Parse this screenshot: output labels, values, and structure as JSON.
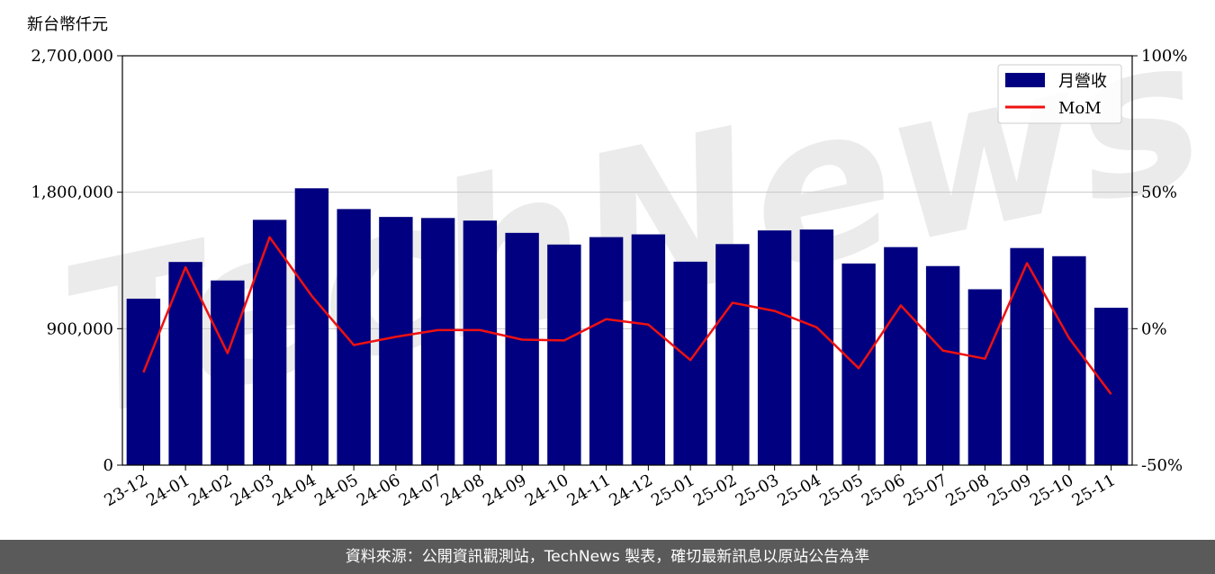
{
  "chart_data": {
    "type": "bar",
    "y_unit_label": "新台幣仟元",
    "categories": [
      "23-12",
      "24-01",
      "24-02",
      "24-03",
      "24-04",
      "24-05",
      "24-06",
      "24-07",
      "24-08",
      "24-09",
      "24-10",
      "24-11",
      "24-12",
      "25-01",
      "25-02",
      "25-03",
      "25-04",
      "25-05",
      "25-06",
      "25-07",
      "25-08",
      "25-09",
      "25-10",
      "25-11"
    ],
    "series": [
      {
        "name": "月營收",
        "axis": "left",
        "kind": "bar",
        "color": "#000080",
        "values": [
          1098000,
          1340000,
          1218000,
          1618000,
          1826000,
          1689000,
          1637000,
          1630000,
          1613000,
          1532000,
          1455000,
          1504000,
          1522000,
          1342000,
          1458000,
          1548000,
          1554000,
          1330000,
          1438000,
          1313000,
          1160000,
          1432000,
          1378000,
          1038000
        ]
      },
      {
        "name": "MoM",
        "axis": "right",
        "kind": "line",
        "color": "#ee1111",
        "values": [
          -16.0,
          22.5,
          -9.0,
          33.5,
          12.0,
          -6.0,
          -3.0,
          -0.5,
          -0.5,
          -4.0,
          -4.3,
          3.5,
          1.5,
          -11.5,
          9.5,
          6.5,
          0.5,
          -14.5,
          8.5,
          -8.0,
          -11.0,
          24.0,
          -3.5,
          -24.0
        ]
      }
    ],
    "left_axis": {
      "ylim": [
        0,
        2700000
      ],
      "ticks": [
        0,
        900000,
        1800000,
        2700000
      ],
      "tick_labels": [
        "0",
        "900,000",
        "1,800,000",
        "2,700,000"
      ]
    },
    "right_axis": {
      "ylim": [
        -50,
        100
      ],
      "ticks": [
        -50,
        0,
        50,
        100
      ],
      "tick_labels": [
        "-50%",
        "0%",
        "50%",
        "100%"
      ]
    },
    "grid": "horizontal",
    "legend_position": "top-right",
    "watermark": "TechNews"
  },
  "footer": {
    "source_text": "資料來源：公開資訊觀測站，TechNews 製表，確切最新訊息以原站公告為準"
  }
}
